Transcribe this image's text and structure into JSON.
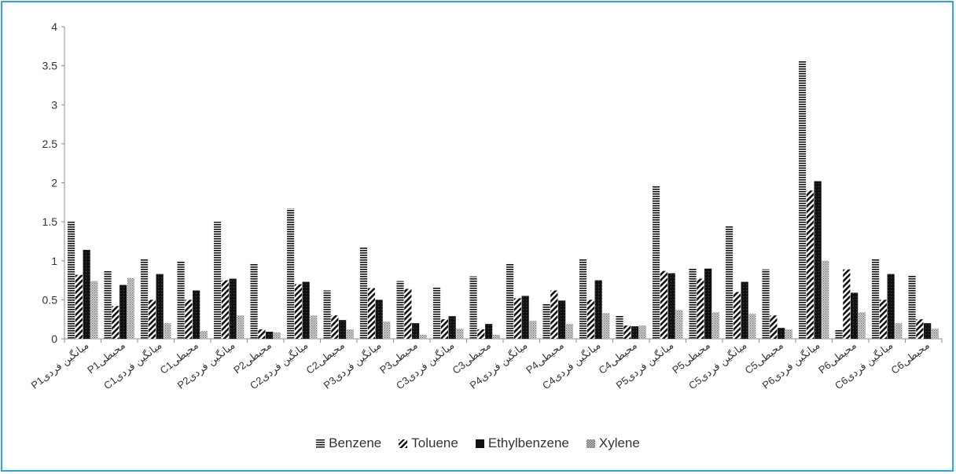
{
  "chart_data": {
    "type": "bar",
    "title": "",
    "xlabel": "",
    "ylabel": "",
    "ylim": [
      0,
      4
    ],
    "yticks": [
      "0",
      "0.5",
      "1",
      "1.5",
      "2",
      "2.5",
      "3",
      "3.5",
      "4"
    ],
    "grid": false,
    "legend_position": "bottom",
    "categories": [
      "P1میانگین فردی",
      "P1محیطی",
      "C1میانگین فردی",
      "C1محیطی",
      "P2میانگین فردی",
      "P2محیطی",
      "C2میانگین فردی",
      "C2محیطی",
      "P3میانگین فردی",
      "P3محیطی",
      "C3میانگین فردی",
      "C3محیطی",
      "P4میانگین فردی",
      "P4محیطی",
      "C4میانگین فردی",
      "C4محیطی",
      "P5میانگین فردی",
      "P5محیطی",
      "C5میانگین فردی",
      "C5محیطی",
      "P6میانگین فردی",
      "P6محیطی",
      "C6میانگین فردی",
      "C6محیطی"
    ],
    "series": [
      {
        "name": "Benzene",
        "pattern": "horizontal-lines",
        "values": [
          1.5,
          0.87,
          1.02,
          1.0,
          1.5,
          0.97,
          1.67,
          0.62,
          1.17,
          0.74,
          0.67,
          0.8,
          0.97,
          0.45,
          1.02,
          0.3,
          1.97,
          0.9,
          1.45,
          0.89,
          3.57,
          0.12,
          1.02,
          0.82
        ]
      },
      {
        "name": "Toluene",
        "pattern": "diagonal-stripes",
        "values": [
          0.82,
          0.42,
          0.5,
          0.5,
          0.75,
          0.12,
          0.7,
          0.3,
          0.65,
          0.64,
          0.25,
          0.12,
          0.52,
          0.62,
          0.5,
          0.17,
          0.87,
          0.77,
          0.6,
          0.3,
          1.9,
          0.89,
          0.5,
          0.25
        ]
      },
      {
        "name": "Ethylbenzene",
        "pattern": "solid-dark",
        "values": [
          1.14,
          0.69,
          0.83,
          0.62,
          0.77,
          0.09,
          0.73,
          0.24,
          0.5,
          0.2,
          0.29,
          0.19,
          0.55,
          0.49,
          0.75,
          0.16,
          0.84,
          0.9,
          0.73,
          0.14,
          2.02,
          0.59,
          0.83,
          0.2
        ]
      },
      {
        "name": "Xylene",
        "pattern": "dotted-grey",
        "values": [
          0.74,
          0.78,
          0.2,
          0.1,
          0.3,
          0.08,
          0.3,
          0.12,
          0.22,
          0.05,
          0.13,
          0.05,
          0.23,
          0.19,
          0.33,
          0.17,
          0.37,
          0.34,
          0.32,
          0.12,
          1.0,
          0.34,
          0.2,
          0.13
        ]
      }
    ]
  },
  "colors": {
    "frame": "#29a9e0",
    "axis": "#8c8c8c",
    "text": "#333333",
    "bar_dark": "#111111"
  }
}
